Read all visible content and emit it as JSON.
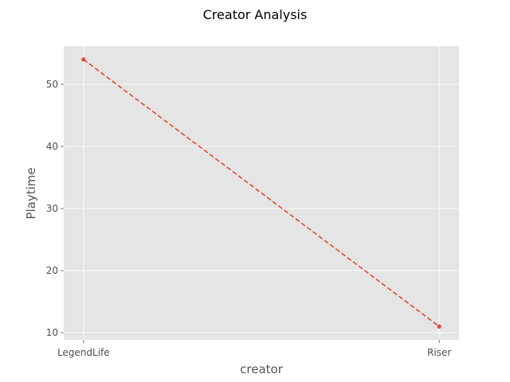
{
  "chart_data": {
    "type": "line",
    "title": "Creator Analysis",
    "xlabel": "creator",
    "ylabel": "Playtime",
    "categories": [
      "LegendLife",
      "Riser"
    ],
    "series": [
      {
        "values": [
          54,
          11
        ]
      }
    ],
    "ylim": [
      8.85,
      56.15
    ],
    "yticks": [
      10,
      20,
      30,
      40,
      50
    ],
    "grid": true,
    "line_style": "dashed",
    "marker": "dot",
    "colors": {
      "line": "#E24A33",
      "plot_background": "#E5E5E5",
      "grid": "#FFFFFF"
    }
  }
}
